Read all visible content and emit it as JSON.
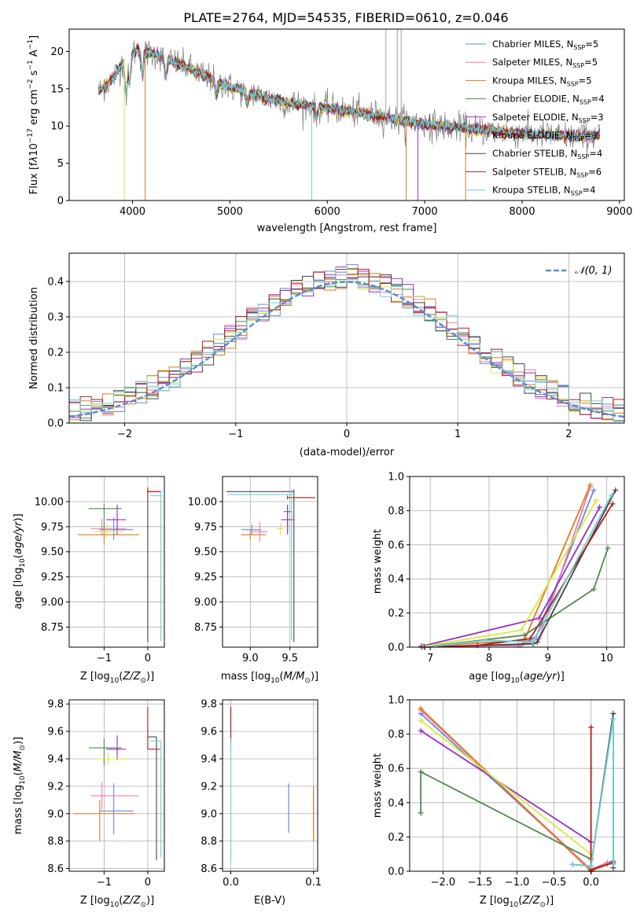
{
  "colors": {
    "Chabrier MILES": "#6a88d8",
    "Salpeter MILES": "#f07ab0",
    "Kroupa MILES": "#e07a20",
    "Chabrier ELODIE": "#4f8a4f",
    "Salpeter ELODIE": "#9a2ec8",
    "Kroupa ELODIE": "#d6ea3a",
    "Chabrier STELIB": "#444444",
    "Salpeter STELIB": "#b01c1c",
    "Kroupa STELIB": "#6fd0d6"
  },
  "chart_data": [
    {
      "type": "line",
      "title": "PLATE=2764, MJD=54535, FIBERID=0610, z=0.046",
      "xlabel": "wavelength [Angstrom, rest frame]",
      "ylabel": "Flux [f_λ 10^-17 erg cm^-2 s^-1 A^-1]",
      "xlim": [
        3350,
        9050
      ],
      "ylim": [
        0,
        23
      ],
      "xticks": [
        "4000",
        "5000",
        "6000",
        "7000",
        "8000",
        "9000"
      ],
      "yticks": [
        "0",
        "5",
        "10",
        "15",
        "20"
      ],
      "legend_position": "upper-right",
      "legend": [
        {
          "model": "Chabrier MILES",
          "nssp": "5"
        },
        {
          "model": "Salpeter MILES",
          "nssp": "5"
        },
        {
          "model": "Kroupa MILES",
          "nssp": "5"
        },
        {
          "model": "Chabrier ELODIE",
          "nssp": "4"
        },
        {
          "model": "Salpeter ELODIE",
          "nssp": "3"
        },
        {
          "model": "Kroupa ELODIE",
          "nssp": "3"
        },
        {
          "model": "Chabrier STELIB",
          "nssp": "4"
        },
        {
          "model": "Salpeter STELIB",
          "nssp": "6"
        },
        {
          "model": "Kroupa STELIB",
          "nssp": "4"
        }
      ],
      "continuum": {
        "x": [
          3650,
          3800,
          3950,
          4050,
          4250,
          4500,
          5000,
          5500,
          6000,
          6500,
          7000,
          7500,
          8000,
          8500,
          8800
        ],
        "y": [
          14.5,
          16.5,
          19.5,
          20.2,
          19.5,
          18.2,
          15.2,
          13.3,
          12.4,
          11.4,
          10.2,
          9.6,
          9.0,
          8.6,
          8.7
        ]
      }
    },
    {
      "type": "line",
      "xlabel": "(data-model)/error",
      "ylabel": "Normed distribution",
      "xlim": [
        -2.5,
        2.5
      ],
      "ylim": [
        0,
        0.48
      ],
      "xticks": [
        "−2",
        "−1",
        "0",
        "1",
        "2"
      ],
      "yticks": [
        "0.0",
        "0.1",
        "0.2",
        "0.3",
        "0.4"
      ],
      "grid": true,
      "legend_position": "upper-right",
      "legend": [
        "𝒩(0, 1)"
      ],
      "gaussian": {
        "mean": 0,
        "sigma": 1
      }
    },
    {
      "type": "scatter",
      "xlabel": "Z [log10(Z/Z⊙)]",
      "ylabel": "age [log10(age/yr)]",
      "xlim": [
        -1.8,
        0.38
      ],
      "ylim": [
        8.55,
        10.25
      ],
      "xticks": [
        "−1",
        "0"
      ],
      "yticks": [
        "8.75",
        "9.00",
        "9.25",
        "9.50",
        "9.75",
        "10.00"
      ]
    },
    {
      "type": "scatter",
      "xlabel": "mass [log10(M/M⊙)]",
      "xlim": [
        8.65,
        9.85
      ],
      "ylim": [
        8.55,
        10.25
      ],
      "xticks": [
        "9.0",
        "9.5"
      ],
      "yticks": [
        "8.75",
        "9.00",
        "9.25",
        "9.50",
        "9.75",
        "10.00"
      ]
    },
    {
      "type": "line",
      "xlabel": "age [log10(age/yr)]",
      "ylabel": "mass weight",
      "xlim": [
        6.65,
        10.3
      ],
      "ylim": [
        0,
        1.0
      ],
      "xticks": [
        "7",
        "8",
        "9",
        "10"
      ],
      "yticks": [
        "0.0",
        "0.2",
        "0.4",
        "0.6",
        "0.8",
        "1.0"
      ],
      "grid": true,
      "series": [
        {
          "model": "Chabrier MILES",
          "x": [
            6.85,
            8.5,
            8.8,
            9.78
          ],
          "y": [
            0.005,
            0.01,
            0.06,
            0.92
          ]
        },
        {
          "model": "Salpeter MILES",
          "x": [
            6.88,
            8.55,
            8.85,
            9.72
          ],
          "y": [
            0.005,
            0.01,
            0.05,
            0.94
          ]
        },
        {
          "model": "Kroupa MILES",
          "x": [
            6.9,
            8.6,
            9.72
          ],
          "y": [
            0.005,
            0.04,
            0.95
          ]
        },
        {
          "model": "Chabrier ELODIE",
          "x": [
            6.85,
            8.6,
            9.78,
            10.02
          ],
          "y": [
            0.0,
            0.07,
            0.34,
            0.58
          ]
        },
        {
          "model": "Salpeter ELODIE",
          "x": [
            6.85,
            8.85,
            9.88
          ],
          "y": [
            0.005,
            0.17,
            0.82
          ]
        },
        {
          "model": "Kroupa ELODIE",
          "x": [
            6.9,
            8.55,
            9.82
          ],
          "y": [
            0.005,
            0.1,
            0.86
          ]
        },
        {
          "model": "Chabrier STELIB",
          "x": [
            6.9,
            8.75,
            8.82,
            10.15
          ],
          "y": [
            0.0,
            0.02,
            0.03,
            0.92
          ]
        },
        {
          "model": "Salpeter STELIB",
          "x": [
            6.9,
            7.8,
            8.7,
            10.1
          ],
          "y": [
            0.0,
            0.01,
            0.05,
            0.84
          ]
        },
        {
          "model": "Kroupa STELIB",
          "x": [
            6.92,
            7.95,
            8.75,
            10.08
          ],
          "y": [
            0.0,
            0.04,
            0.03,
            0.89
          ]
        }
      ]
    },
    {
      "type": "scatter",
      "xlabel": "Z [log10(Z/Z⊙)]",
      "ylabel": "mass [log10(M/M⊙)]",
      "xlim": [
        -1.8,
        0.38
      ],
      "ylim": [
        8.58,
        9.83
      ],
      "xticks": [
        "−1",
        "0"
      ],
      "yticks": [
        "8.6",
        "8.8",
        "9.0",
        "9.2",
        "9.4",
        "9.6",
        "9.8"
      ]
    },
    {
      "type": "scatter",
      "xlabel": "E(B-V)",
      "xlim": [
        -0.01,
        0.105
      ],
      "ylim": [
        8.58,
        9.83
      ],
      "xticks": [
        "0.0",
        "0.1"
      ],
      "yticks": [
        "8.6",
        "8.8",
        "9.0",
        "9.2",
        "9.4",
        "9.6",
        "9.8"
      ]
    },
    {
      "type": "line",
      "xlabel": "Z [log10(Z/Z⊙)]",
      "ylabel": "mass weight",
      "xlim": [
        -2.45,
        0.45
      ],
      "ylim": [
        0,
        1.0
      ],
      "xticks": [
        "−2.0",
        "−1.5",
        "−1.0",
        "−0.5",
        "0.0"
      ],
      "yticks": [
        "0.0",
        "0.2",
        "0.4",
        "0.6",
        "0.8",
        "1.0"
      ],
      "grid": true,
      "series": [
        {
          "model": "Chabrier MILES",
          "x": [
            -2.3,
            0.0,
            0.22,
            0.3
          ],
          "y": [
            0.92,
            0.01,
            0.05,
            0.06
          ]
        },
        {
          "model": "Salpeter MILES",
          "x": [
            -2.3,
            0.0,
            0.22
          ],
          "y": [
            0.94,
            0.01,
            0.05
          ]
        },
        {
          "model": "Kroupa MILES",
          "x": [
            -2.3,
            0.0,
            0.22
          ],
          "y": [
            0.95,
            0.0,
            0.04
          ]
        },
        {
          "model": "Chabrier ELODIE",
          "x": [
            -2.3,
            -2.3,
            -2.3,
            0.0,
            0.0
          ],
          "y": [
            0.34,
            0.34,
            0.58,
            0.07,
            0.0
          ]
        },
        {
          "model": "Salpeter ELODIE",
          "x": [
            -2.3,
            0.0,
            0.0
          ],
          "y": [
            0.82,
            0.17,
            0.0
          ]
        },
        {
          "model": "Kroupa ELODIE",
          "x": [
            -2.3,
            0.0,
            0.0
          ],
          "y": [
            0.88,
            0.1,
            0.0
          ]
        },
        {
          "model": "Chabrier STELIB",
          "x": [
            -0.25,
            0.0,
            0.3,
            0.3
          ],
          "y": [
            0.04,
            0.03,
            0.92,
            0.02
          ]
        },
        {
          "model": "Salpeter STELIB",
          "x": [
            0.0,
            0.0,
            0.0,
            0.3
          ],
          "y": [
            0.0,
            0.84,
            0.01,
            0.05
          ]
        },
        {
          "model": "Kroupa STELIB",
          "x": [
            -0.25,
            0.0,
            0.3,
            0.3
          ],
          "y": [
            0.04,
            0.03,
            0.89,
            0.04
          ]
        }
      ]
    }
  ]
}
